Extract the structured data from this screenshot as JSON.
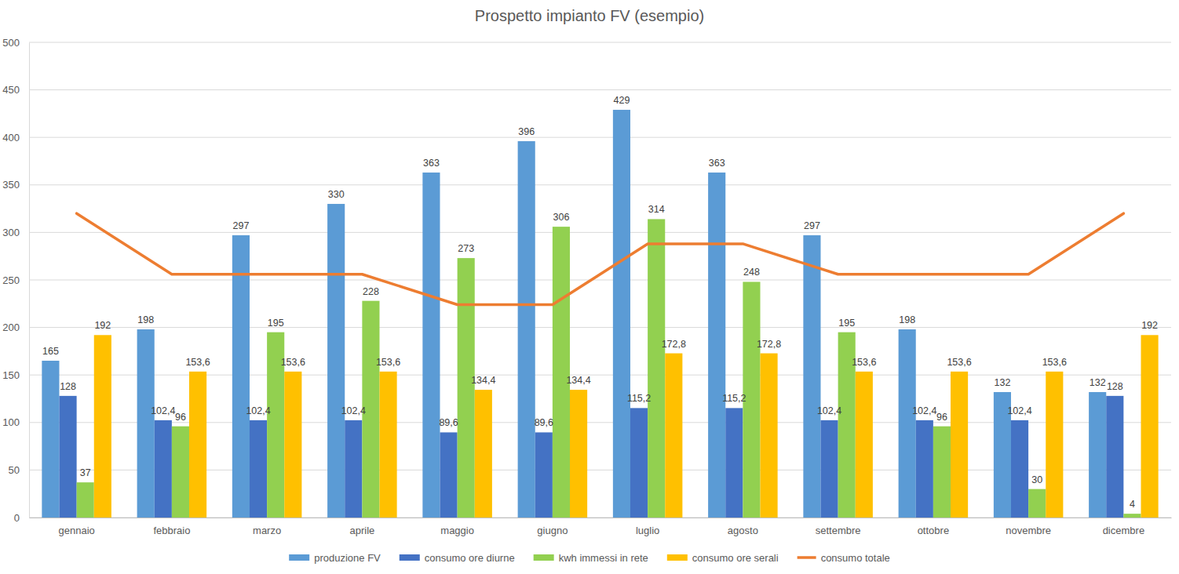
{
  "chart_data": {
    "type": "bar",
    "title": "Prospetto impianto FV (esempio)",
    "categories": [
      "gennaio",
      "febbraio",
      "marzo",
      "aprile",
      "maggio",
      "giugno",
      "luglio",
      "agosto",
      "settembre",
      "ottobre",
      "novembre",
      "dicembre"
    ],
    "series": [
      {
        "name": "produzione FV",
        "type": "bar",
        "color": "#5b9bd5",
        "values": [
          165,
          198,
          297,
          330,
          363,
          396,
          429,
          363,
          297,
          198,
          132,
          132
        ]
      },
      {
        "name": "consumo ore diurne",
        "type": "bar",
        "color": "#4472c4",
        "values": [
          128,
          102.4,
          102.4,
          102.4,
          89.6,
          89.6,
          115.2,
          115.2,
          102.4,
          102.4,
          102.4,
          128
        ],
        "value_labels": [
          "128",
          "102,4",
          "102,4",
          "102,4",
          "89,6",
          "89,6",
          "115,2",
          "115,2",
          "102,4",
          "102,4",
          "102,4",
          "128"
        ]
      },
      {
        "name": "kwh immessi in rete",
        "type": "bar",
        "color": "#92d050",
        "values": [
          37,
          96,
          195,
          228,
          273,
          306,
          314,
          248,
          195,
          96,
          30,
          4
        ]
      },
      {
        "name": "consumo ore serali",
        "type": "bar",
        "color": "#ffc000",
        "values": [
          192,
          153.6,
          153.6,
          153.6,
          134.4,
          134.4,
          172.8,
          172.8,
          153.6,
          153.6,
          153.6,
          192
        ],
        "value_labels": [
          "192",
          "153,6",
          "153,6",
          "153,6",
          "134,4",
          "134,4",
          "172,8",
          "172,8",
          "153,6",
          "153,6",
          "153,6",
          "192"
        ]
      },
      {
        "name": "consumo totale",
        "type": "line",
        "color": "#ed7d31",
        "data_labels": false,
        "values": [
          320,
          256,
          256,
          256,
          224,
          224,
          288,
          288,
          256,
          256,
          256,
          320
        ]
      }
    ],
    "ylim": [
      0,
      500
    ],
    "yticks": [
      0,
      50,
      100,
      150,
      200,
      250,
      300,
      350,
      400,
      450,
      500
    ],
    "grid": true,
    "data_labels": true,
    "legend": "bottom"
  }
}
